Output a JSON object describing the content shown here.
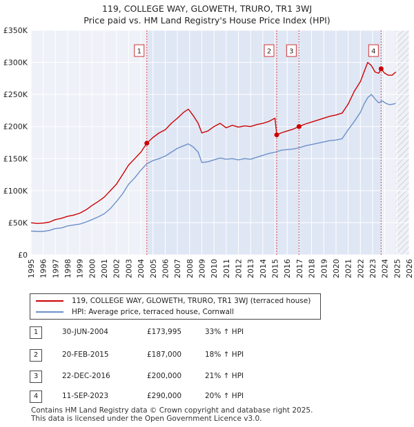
{
  "title_line1": "119, COLLEGE WAY, GLOWETH, TRURO, TR1 3WJ",
  "title_line2": "Price paid vs. HM Land Registry's House Price Index (HPI)",
  "chart_data": {
    "type": "line",
    "title": "119, COLLEGE WAY, GLOWETH, TRURO, TR1 3WJ — Price paid vs. HM Land Registry's House Price Index (HPI)",
    "xlabel": "",
    "ylabel": "",
    "xlim": [
      1995,
      2026
    ],
    "ylim": [
      0,
      350000
    ],
    "y_ticks": [
      {
        "value": 0,
        "label": "£0"
      },
      {
        "value": 50000,
        "label": "£50K"
      },
      {
        "value": 100000,
        "label": "£100K"
      },
      {
        "value": 150000,
        "label": "£150K"
      },
      {
        "value": 200000,
        "label": "£200K"
      },
      {
        "value": 250000,
        "label": "£250K"
      },
      {
        "value": 300000,
        "label": "£300K"
      },
      {
        "value": 350000,
        "label": "£350K"
      }
    ],
    "x_ticks": [
      "1995",
      "1996",
      "1997",
      "1998",
      "1999",
      "2000",
      "2001",
      "2002",
      "2003",
      "2004",
      "2005",
      "2006",
      "2007",
      "2008",
      "2009",
      "2010",
      "2011",
      "2012",
      "2013",
      "2014",
      "2015",
      "2016",
      "2017",
      "2018",
      "2019",
      "2020",
      "2021",
      "2022",
      "2023",
      "2024",
      "2025",
      "2026"
    ],
    "grid": true,
    "shaded_region": {
      "from": 2004.5,
      "to": 2023.7
    },
    "hatched_region": {
      "from": 2024.9,
      "to": 2026
    },
    "series": [
      {
        "name": "119, COLLEGE WAY, GLOWETH, TRURO, TR1 3WJ (terraced house)",
        "color": "#cc0000",
        "x": [
          1995.0,
          1995.5,
          1996.0,
          1996.5,
          1997.0,
          1997.5,
          1998.0,
          1998.5,
          1999.0,
          1999.5,
          2000.0,
          2000.5,
          2001.0,
          2001.5,
          2002.0,
          2002.5,
          2003.0,
          2003.5,
          2004.0,
          2004.5,
          2005.0,
          2005.5,
          2006.0,
          2006.5,
          2007.0,
          2007.5,
          2007.9,
          2008.3,
          2008.7,
          2009.0,
          2009.5,
          2010.0,
          2010.5,
          2011.0,
          2011.5,
          2012.0,
          2012.5,
          2013.0,
          2013.5,
          2014.0,
          2014.5,
          2015.0,
          2015.14,
          2015.5,
          2016.0,
          2016.5,
          2016.97,
          2017.5,
          2018.0,
          2018.5,
          2019.0,
          2019.5,
          2020.0,
          2020.5,
          2021.0,
          2021.5,
          2022.0,
          2022.3,
          2022.6,
          2022.9,
          2023.2,
          2023.5,
          2023.7,
          2024.0,
          2024.3,
          2024.6,
          2024.9
        ],
        "values": [
          50000,
          49000,
          49500,
          51000,
          55000,
          57000,
          60000,
          62000,
          65000,
          70000,
          77000,
          83000,
          90000,
          100000,
          110000,
          125000,
          140000,
          150000,
          160000,
          173995,
          183000,
          190000,
          195000,
          205000,
          213000,
          222000,
          227000,
          217000,
          205000,
          190000,
          193000,
          200000,
          205000,
          198000,
          202000,
          199000,
          201000,
          200000,
          203000,
          205000,
          208000,
          213000,
          187000,
          190000,
          193000,
          196000,
          200000,
          204000,
          207000,
          210000,
          213000,
          216000,
          218000,
          221000,
          235000,
          255000,
          270000,
          285000,
          300000,
          295000,
          285000,
          283000,
          290000,
          283000,
          280000,
          280000,
          285000
        ]
      },
      {
        "name": "HPI: Average price, terraced house, Cornwall",
        "color": "#6a8fc8",
        "x": [
          1995.0,
          1995.5,
          1996.0,
          1996.5,
          1997.0,
          1997.5,
          1998.0,
          1998.5,
          1999.0,
          1999.5,
          2000.0,
          2000.5,
          2001.0,
          2001.5,
          2002.0,
          2002.5,
          2003.0,
          2003.5,
          2004.0,
          2004.5,
          2005.0,
          2005.5,
          2006.0,
          2006.5,
          2007.0,
          2007.5,
          2007.9,
          2008.3,
          2008.7,
          2009.0,
          2009.5,
          2010.0,
          2010.5,
          2011.0,
          2011.5,
          2012.0,
          2012.5,
          2013.0,
          2013.5,
          2014.0,
          2014.5,
          2015.0,
          2015.5,
          2016.0,
          2016.5,
          2017.0,
          2017.5,
          2018.0,
          2018.5,
          2019.0,
          2019.5,
          2020.0,
          2020.5,
          2021.0,
          2021.5,
          2022.0,
          2022.3,
          2022.6,
          2022.9,
          2023.2,
          2023.5,
          2023.8,
          2024.1,
          2024.4,
          2024.7,
          2024.9
        ],
        "values": [
          37000,
          36500,
          36500,
          38000,
          41000,
          42000,
          45000,
          46500,
          48000,
          51000,
          55000,
          59000,
          64000,
          72000,
          83000,
          95000,
          110000,
          120000,
          132000,
          142000,
          147000,
          150000,
          154000,
          160000,
          166000,
          170000,
          173000,
          168000,
          160000,
          144000,
          145000,
          148000,
          151000,
          149000,
          150000,
          148000,
          150000,
          149000,
          152000,
          155000,
          158000,
          160000,
          163000,
          164000,
          165000,
          167000,
          170000,
          172000,
          174000,
          176000,
          178000,
          179000,
          181000,
          195000,
          208000,
          222000,
          235000,
          245000,
          250000,
          243000,
          237000,
          240000,
          236000,
          234000,
          235000,
          236000
        ]
      }
    ],
    "sales": [
      {
        "label": "1",
        "x": 2004.49,
        "value": 173995
      },
      {
        "label": "2",
        "x": 2015.14,
        "value": 187000
      },
      {
        "label": "3",
        "x": 2016.97,
        "value": 200000
      },
      {
        "label": "4",
        "x": 2023.7,
        "value": 290000
      }
    ]
  },
  "legend": {
    "property_label": "119, COLLEGE WAY, GLOWETH, TRURO, TR1 3WJ (terraced house)",
    "hpi_label": "HPI: Average price, terraced house, Cornwall",
    "property_color": "#cc0000",
    "hpi_color": "#6a8fc8"
  },
  "table": [
    {
      "num": "1",
      "date": "30-JUN-2004",
      "price": "£173,995",
      "pct": "33% ↑ HPI"
    },
    {
      "num": "2",
      "date": "20-FEB-2015",
      "price": "£187,000",
      "pct": "18% ↑ HPI"
    },
    {
      "num": "3",
      "date": "22-DEC-2016",
      "price": "£200,000",
      "pct": "21% ↑ HPI"
    },
    {
      "num": "4",
      "date": "11-SEP-2023",
      "price": "£290,000",
      "pct": "20% ↑ HPI"
    }
  ],
  "footer_line1": "Contains HM Land Registry data © Crown copyright and database right 2025.",
  "footer_line2": "This data is licensed under the Open Government Licence v3.0."
}
